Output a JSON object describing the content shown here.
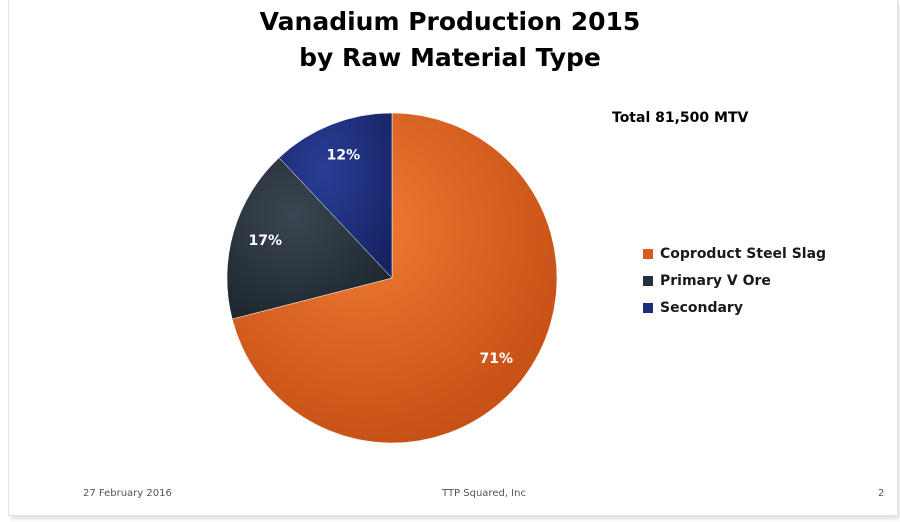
{
  "slide": {
    "title_line1": "Vanadium Production 2015",
    "title_line2": "by Raw Material Type",
    "total_label": "Total 81,500 MTV",
    "footer_date": "27 February 2016",
    "footer_company": "TTP Squared, Inc",
    "footer_page": "2"
  },
  "chart_data": {
    "type": "pie",
    "title": "Vanadium Production 2015 by Raw Material Type",
    "slices": [
      {
        "name": "Coproduct Steel Slag",
        "value": 71,
        "label": "71%",
        "color": "#d95a1e"
      },
      {
        "name": "Primary V Ore",
        "value": 17,
        "label": "17%",
        "color": "#253039"
      },
      {
        "name": "Secondary",
        "value": 12,
        "label": "12%",
        "color": "#1c2d78"
      }
    ],
    "legend_position": "right",
    "start_angle": "12 o'clock",
    "direction": "clockwise"
  }
}
